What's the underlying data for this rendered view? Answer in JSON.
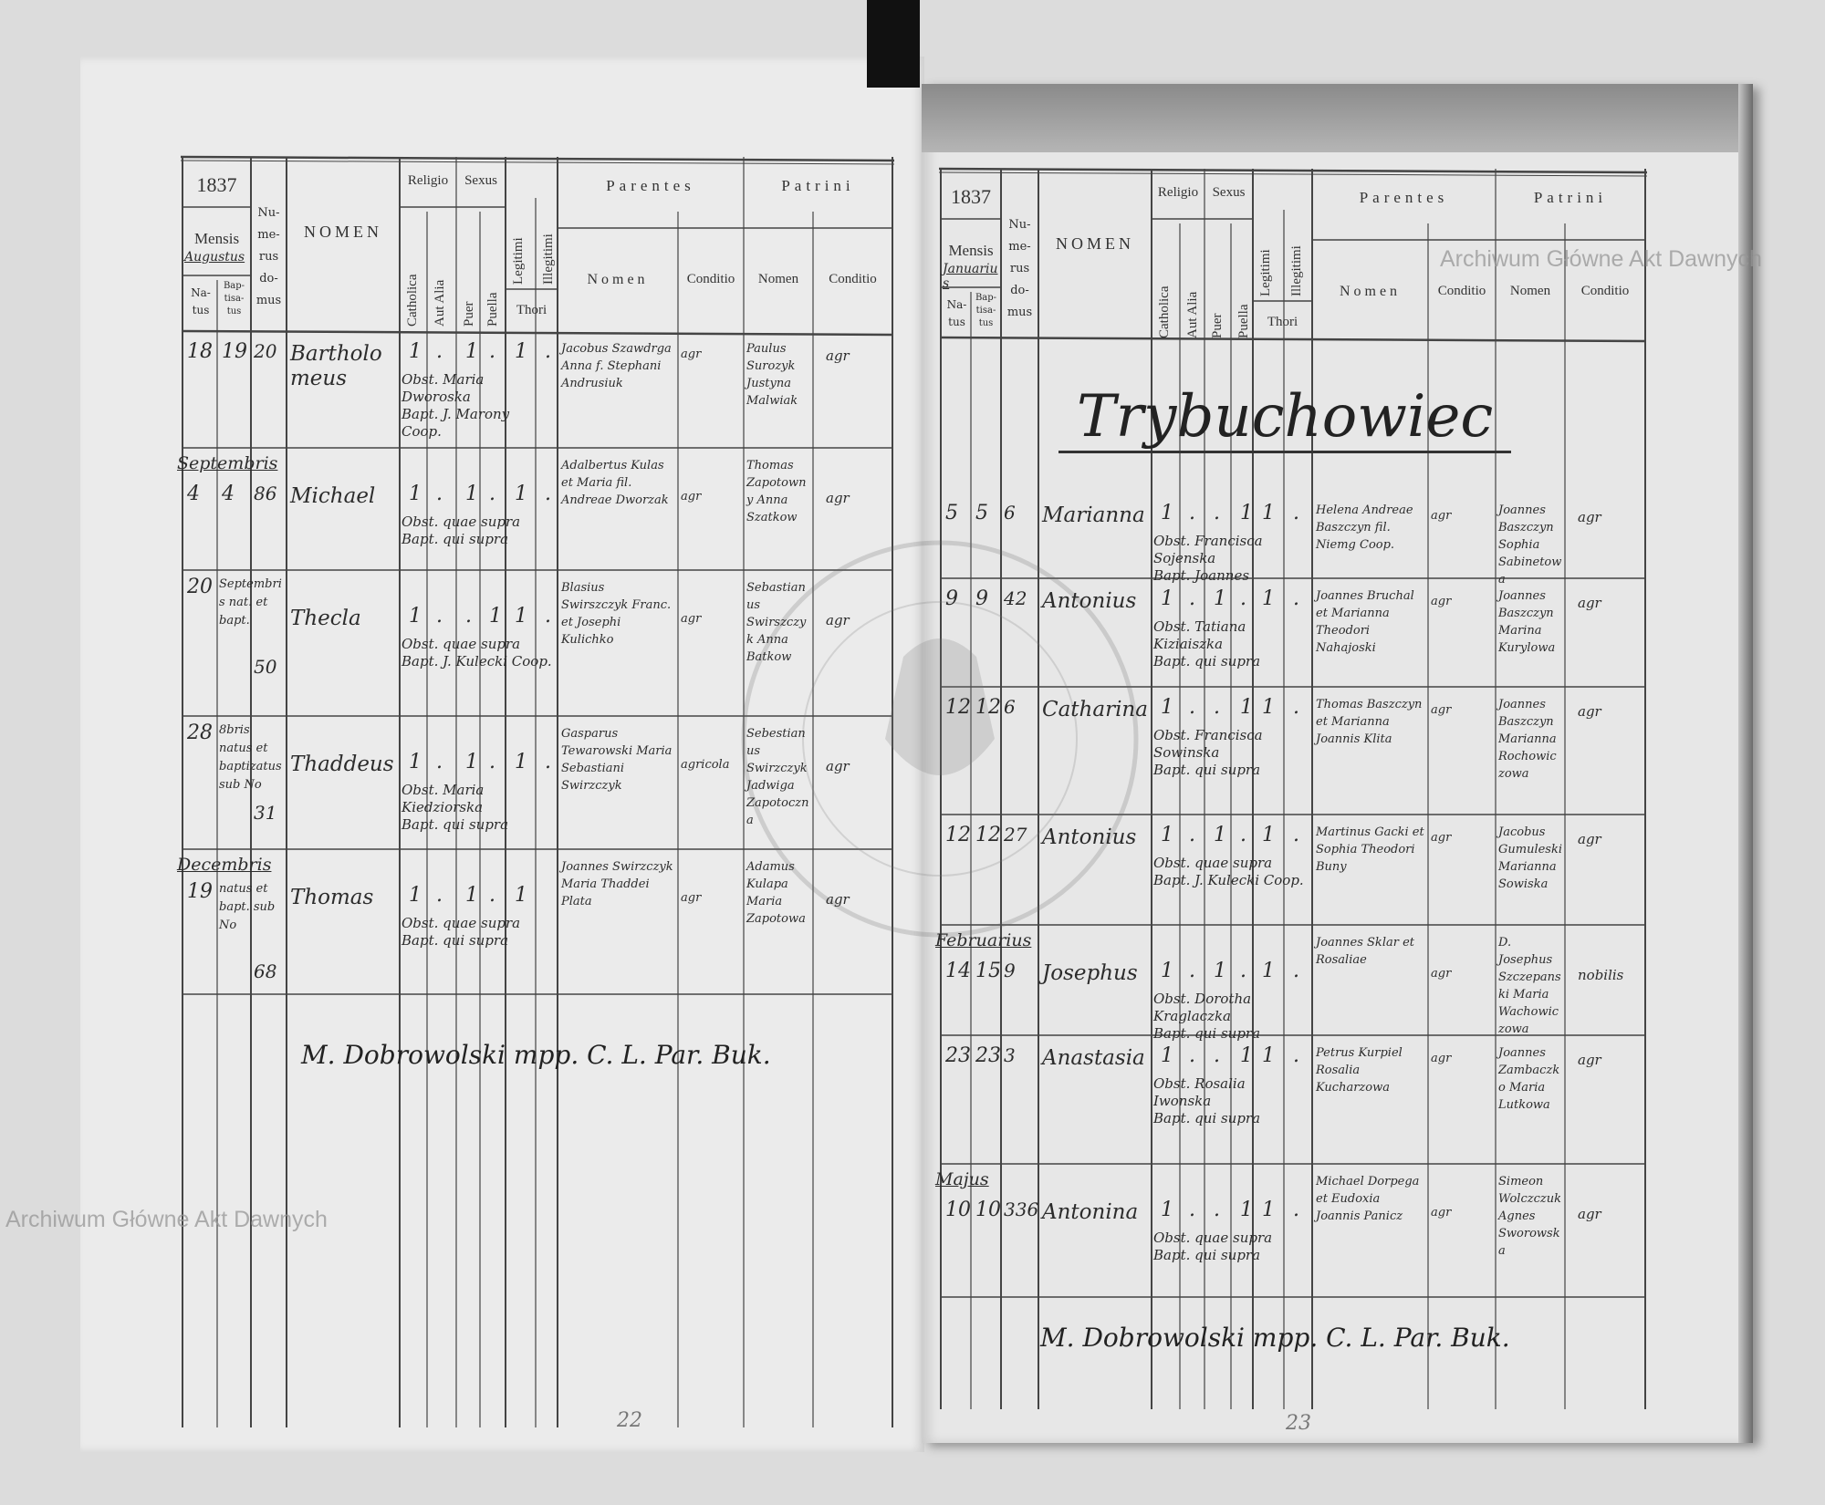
{
  "watermark": "Archiwum Główne Akt Dawnych",
  "stamp_text": "ARCHIWUM GŁÓWNE AKT DAWNYCH",
  "header": {
    "year": "1837",
    "mensis": "Mensis",
    "natus": "Na-tus",
    "baptisatus": "Bap-tisa-tus",
    "numerus_domus": "Nu-me-rus do-mus",
    "nomen": "NOMEN",
    "religio": "Religio",
    "catholica": "Catholica",
    "aut_alia": "Aut Alia",
    "sexus": "Sexus",
    "puer": "Puer",
    "puella": "Puella",
    "legitimi": "Legitimi",
    "illegitimi": "Illegitimi",
    "thori": "Thori",
    "parentes": "Parentes",
    "patrini": "Patrini",
    "sub_nomen": "Nomen",
    "conditio": "Conditio"
  },
  "pages": [
    {
      "month": "Augustus",
      "page_number": "22",
      "title": "",
      "rows": [
        {
          "month": "",
          "date_note": "",
          "natus": "18",
          "baptisatus": "19",
          "domus": "20",
          "nomen": "Bartholomeus",
          "marks": [
            "1",
            ".",
            "1",
            ".",
            "1",
            "."
          ],
          "parentes": "Jacobus Szawdrga Anna f. Stephani Andrusiuk",
          "parentes_conditio": "agr",
          "patrini": "Paulus Surozyk Justyna Malwiak",
          "patrini_conditio": "agr",
          "notes": [
            "Obst. Maria Dworoska",
            "Bapt. J. Marony Coop."
          ]
        },
        {
          "month": "Septembris",
          "date_note": "",
          "natus": "4",
          "baptisatus": "4",
          "domus": "86",
          "nomen": "Michael",
          "marks": [
            "1",
            ".",
            "1",
            ".",
            "1",
            "."
          ],
          "parentes": "Adalbertus Kulas et Maria fil. Andreae Dworzak",
          "parentes_conditio": "agr",
          "patrini": "Thomas Zapotowny Anna Szatkow",
          "patrini_conditio": "agr",
          "notes": [
            "Obst. quae supra",
            "Bapt. qui supra"
          ]
        },
        {
          "month": "",
          "date_note": "Septembris nat. et bapt.",
          "natus": "20",
          "baptisatus": "",
          "domus": "50",
          "nomen": "Thecla",
          "marks": [
            "1",
            ".",
            ".",
            "1",
            "1",
            "."
          ],
          "parentes": "Blasius Swirszczyk Franc. et Josephi Kulichko",
          "parentes_conditio": "agr",
          "patrini": "Sebastianus Swirszczyk Anna Batkow",
          "patrini_conditio": "agr",
          "notes": [
            "Obst. quae supra",
            "Bapt. J. Kulecki Coop."
          ]
        },
        {
          "month": "",
          "date_note": "8bris natus et baptizatus sub No",
          "natus": "28",
          "baptisatus": "",
          "domus": "31",
          "nomen": "Thaddeus",
          "marks": [
            "1",
            ".",
            "1",
            ".",
            "1",
            "."
          ],
          "parentes": "Gasparus Tewarowski Maria Sebastiani Swirzczyk",
          "parentes_conditio": "agricola",
          "patrini": "Sebestianus Swirzczyk Jadwiga Zapotoczna",
          "patrini_conditio": "agr",
          "notes": [
            "Obst. Maria Kiedziorska",
            "Bapt. qui supra"
          ]
        },
        {
          "month": "Decembris",
          "date_note": "natus et bapt. sub No",
          "natus": "19",
          "baptisatus": "",
          "domus": "68",
          "nomen": "Thomas",
          "marks": [
            "1",
            ".",
            "1",
            ".",
            "1",
            ""
          ],
          "parentes": "Joannes Swirzczyk Maria Thaddei Plata",
          "parentes_conditio": "agr",
          "patrini": "Adamus Kulapa Maria Zapotowa",
          "patrini_conditio": "agr",
          "notes": [
            "Obst. quae supra",
            "Bapt. qui supra"
          ]
        }
      ],
      "signature": "M. Dobrowolski mpp. C. L. Par. Buk."
    },
    {
      "month": "Januarius",
      "page_number": "23",
      "title": "Trybuchowiec",
      "rows": [
        {
          "month": "",
          "date_note": "",
          "natus": "5",
          "baptisatus": "5",
          "domus": "6",
          "nomen": "Marianna",
          "marks": [
            "1",
            ".",
            ".",
            "1",
            "1",
            "."
          ],
          "parentes": "Helena Andreae Baszczyn fil. Niemg Coop.",
          "parentes_conditio": "agr",
          "patrini": "Joannes Baszczyn Sophia Sabinetowa",
          "patrini_conditio": "agr",
          "notes": [
            "Obst. Francisca Sojenska",
            "Bapt. Joannes"
          ]
        },
        {
          "month": "",
          "date_note": "",
          "natus": "9",
          "baptisatus": "9",
          "domus": "42",
          "nomen": "Antonius",
          "marks": [
            "1",
            ".",
            "1",
            ".",
            "1",
            "."
          ],
          "parentes": "Joannes Bruchal et Marianna Theodori Nahajoski",
          "parentes_conditio": "agr",
          "patrini": "Joannes Baszczyn Marina Kurylowa",
          "patrini_conditio": "agr",
          "notes": [
            "Obst. Tatiana Kiziaiszka",
            "Bapt. qui supra"
          ]
        },
        {
          "month": "",
          "date_note": "",
          "natus": "12",
          "baptisatus": "12",
          "domus": "6",
          "nomen": "Catharina",
          "marks": [
            "1",
            ".",
            ".",
            "1",
            "1",
            "."
          ],
          "parentes": "Thomas Baszczyn et Marianna Joannis Klita",
          "parentes_conditio": "agr",
          "patrini": "Joannes Baszczyn Marianna Rochowiczowa",
          "patrini_conditio": "agr",
          "notes": [
            "Obst. Francisca Sowinska",
            "Bapt. qui supra"
          ]
        },
        {
          "month": "",
          "date_note": "",
          "natus": "12",
          "baptisatus": "12",
          "domus": "27",
          "nomen": "Antonius",
          "marks": [
            "1",
            ".",
            "1",
            ".",
            "1",
            "."
          ],
          "parentes": "Martinus Gacki et Sophia Theodori Buny",
          "parentes_conditio": "agr",
          "patrini": "Jacobus Gumuleski Marianna Sowiska",
          "patrini_conditio": "agr",
          "notes": [
            "Obst. quae supra",
            "Bapt. J. Kulecki Coop."
          ]
        },
        {
          "month": "Februarius",
          "date_note": "",
          "natus": "14",
          "baptisatus": "15",
          "domus": "9",
          "nomen": "Josephus",
          "marks": [
            "1",
            ".",
            "1",
            ".",
            "1",
            "."
          ],
          "parentes": "Joannes Sklar et Rosaliae",
          "parentes_conditio": "agr",
          "patrini": "D. Josephus Szczepanski Maria Wachowiczowa",
          "patrini_conditio": "nobilis",
          "notes": [
            "Obst. Dorotha Kraglaczka",
            "Bapt. qui supra"
          ]
        },
        {
          "month": "",
          "date_note": "",
          "natus": "23",
          "baptisatus": "23",
          "domus": "3",
          "nomen": "Anastasia",
          "marks": [
            "1",
            ".",
            ".",
            "1",
            "1",
            "."
          ],
          "parentes": "Petrus Kurpiel Rosalia Kucharzowa",
          "parentes_conditio": "agr",
          "patrini": "Joannes Zambaczko Maria Lutkowa",
          "patrini_conditio": "agr",
          "notes": [
            "Obst. Rosalia Iwonska",
            "Bapt. qui supra"
          ]
        },
        {
          "month": "Majus",
          "date_note": "",
          "natus": "10",
          "baptisatus": "10",
          "domus": "336",
          "nomen": "Antonina",
          "marks": [
            "1",
            ".",
            ".",
            "1",
            "1",
            "."
          ],
          "parentes": "Michael Dorpega et Eudoxia Joannis Panicz",
          "parentes_conditio": "agr",
          "patrini": "Simeon Wolczczuk Agnes Sworowska",
          "patrini_conditio": "agr",
          "notes": [
            "Obst. quae supra",
            "Bapt. qui supra"
          ]
        }
      ],
      "signature": "M. Dobrowolski mpp. C. L. Par. Buk."
    }
  ]
}
